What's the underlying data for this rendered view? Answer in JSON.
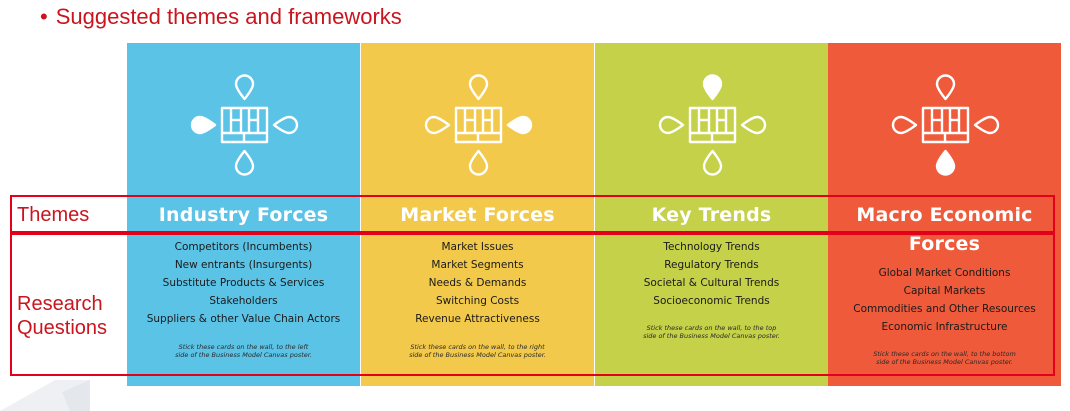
{
  "heading": {
    "bullet": "•",
    "text": "Suggested themes and frameworks"
  },
  "row_labels": {
    "themes": "Themes",
    "research_line1": "Research",
    "questions_line2": "Questions"
  },
  "panels": [
    {
      "title": "Industry Forces",
      "title_line2": "",
      "color": "#5bc3e6",
      "filled_petal": "left",
      "items": [
        "Competitors (Incumbents)",
        "New entrants (Insurgents)",
        "Substitute Products & Services",
        "Stakeholders",
        "Suppliers & other Value Chain Actors"
      ],
      "note_line1": "Stick these cards on the wall, to the left",
      "note_line2": "side of the Business Model Canvas poster."
    },
    {
      "title": "Market Forces",
      "title_line2": "",
      "color": "#f2c94a",
      "filled_petal": "right",
      "items": [
        "Market Issues",
        "Market Segments",
        "Needs & Demands",
        "Switching Costs",
        "Revenue Attractiveness"
      ],
      "note_line1": "Stick these cards on the wall, to the right",
      "note_line2": "side of the Business Model Canvas poster."
    },
    {
      "title": "Key Trends",
      "title_line2": "",
      "color": "#c4d149",
      "filled_petal": "top",
      "items": [
        "Technology Trends",
        "Regulatory Trends",
        "Societal & Cultural Trends",
        "Socioeconomic Trends"
      ],
      "note_line1": "Stick these cards on the wall, to the top",
      "note_line2": "side of the Business Model Canvas poster."
    },
    {
      "title": "Macro Economic",
      "title_line2": "Forces",
      "color": "#ef5a3b",
      "filled_petal": "bottom",
      "items": [
        "Global Market Conditions",
        "Capital Markets",
        "Commodities and Other Resources",
        "Economic Infrastructure"
      ],
      "note_line1": "Stick these cards on the wall, to the bottom",
      "note_line2": "side of the Business Model Canvas poster."
    }
  ],
  "colors": {
    "accent_red": "#c9151e",
    "frame_red": "#e2001a"
  }
}
